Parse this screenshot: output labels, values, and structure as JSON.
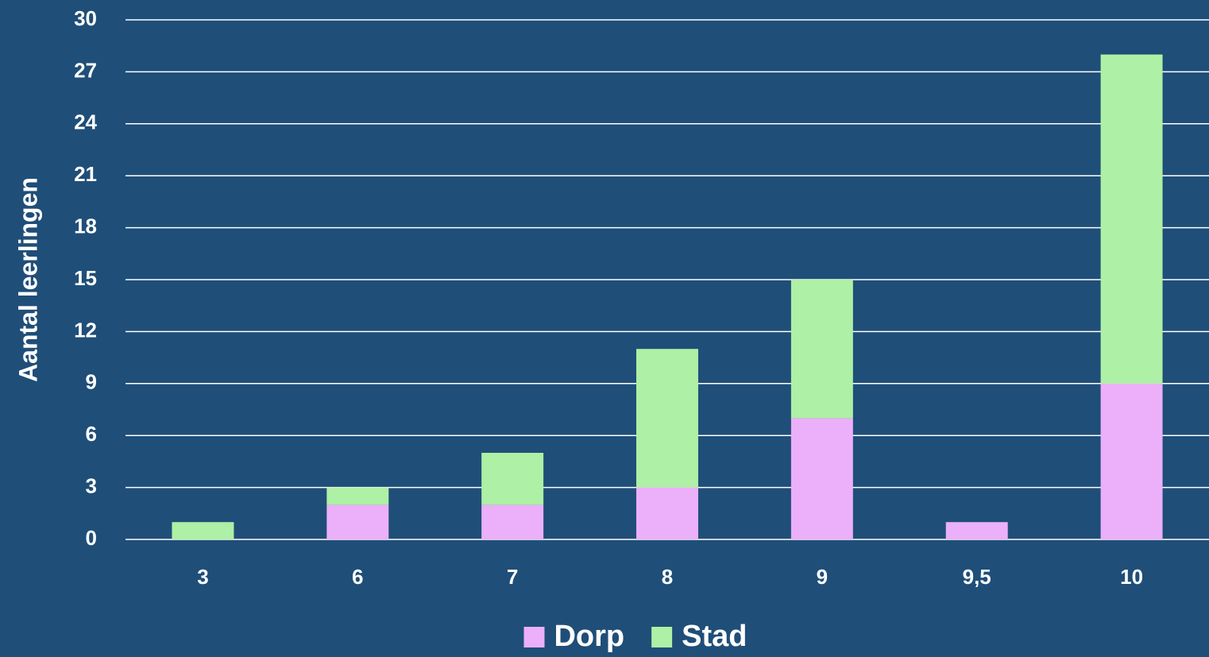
{
  "chart_data": {
    "type": "stacked_bar",
    "y_label": "Aantal leerlingen",
    "categories": [
      "3",
      "6",
      "7",
      "8",
      "9",
      "9,5",
      "10"
    ],
    "series": [
      {
        "name": "Dorp",
        "color": "#ebb0f9",
        "values": [
          0,
          2,
          2,
          3,
          7,
          1,
          9
        ]
      },
      {
        "name": "Stad",
        "color": "#aef0a5",
        "values": [
          1,
          1,
          3,
          8,
          8,
          0,
          19
        ]
      }
    ],
    "ylim": [
      0,
      30
    ],
    "yticks": [
      0,
      3,
      6,
      9,
      12,
      15,
      18,
      21,
      24,
      27,
      30
    ],
    "grid": true,
    "legend": "bottom"
  }
}
